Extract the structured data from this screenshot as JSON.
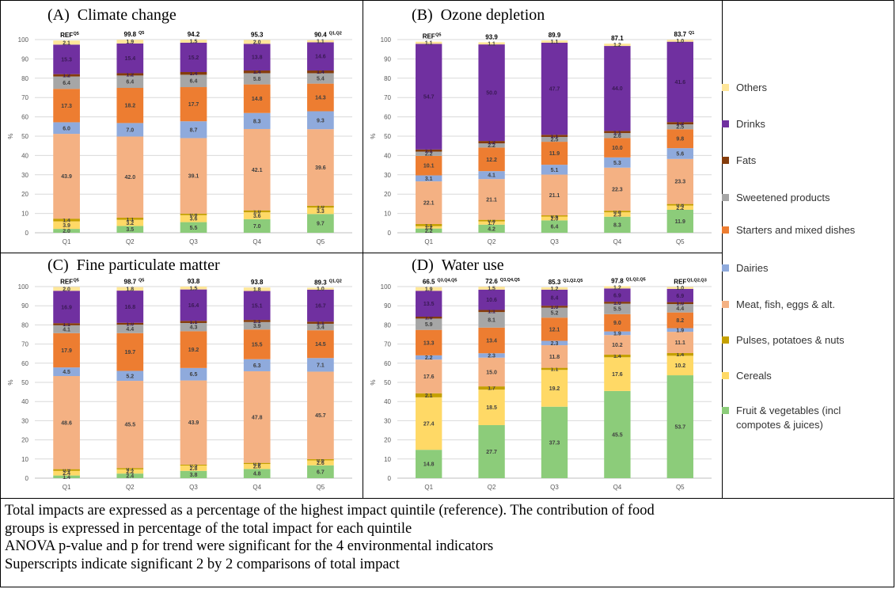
{
  "chart_data": [
    {
      "type": "bar",
      "panel": "(A)",
      "title": "Climate change",
      "ylabel": "%",
      "ylim": [
        0,
        100
      ],
      "categories": [
        "Q1",
        "Q2",
        "Q3",
        "Q4",
        "Q5"
      ],
      "totals": [
        "REF",
        "99.8",
        "94.2",
        "95.3",
        "90.4"
      ],
      "superscripts": [
        "Q5",
        "Q5",
        "",
        "",
        "Q1,Q2"
      ],
      "series": [
        {
          "name": "Fruit & vegetables (incl compotes & juices)",
          "color": "#8ccc7a",
          "values": [
            2.0,
            3.5,
            5.5,
            7.0,
            9.7
          ]
        },
        {
          "name": "Cereals",
          "color": "#ffd966",
          "values": [
            3.9,
            3.2,
            3.6,
            3.6,
            3.3
          ]
        },
        {
          "name": "Pulses, potatoes & nuts",
          "color": "#c5a000",
          "values": [
            1.4,
            1.1,
            0.8,
            1.0,
            1.0
          ]
        },
        {
          "name": "Meat, fish, eggs & alt.",
          "color": "#f4b183",
          "values": [
            43.9,
            42.0,
            39.1,
            42.1,
            39.6
          ]
        },
        {
          "name": "Dairies",
          "color": "#8faadc",
          "values": [
            6.0,
            7.0,
            8.7,
            8.3,
            9.3
          ]
        },
        {
          "name": "Starters and mixed dishes",
          "color": "#ed7d31",
          "values": [
            17.3,
            18.2,
            17.7,
            14.8,
            14.3
          ]
        },
        {
          "name": "Sweetened products",
          "color": "#a6a6a6",
          "values": [
            6.4,
            6.4,
            6.4,
            5.8,
            5.4
          ]
        },
        {
          "name": "Fats",
          "color": "#843c0c",
          "values": [
            1.2,
            1.2,
            1.4,
            1.4,
            1.4
          ]
        },
        {
          "name": "Drinks",
          "color": "#7030a0",
          "values": [
            15.3,
            15.4,
            15.2,
            13.8,
            14.6
          ]
        },
        {
          "name": "Others",
          "color": "#ffe699",
          "values": [
            2.1,
            1.9,
            1.5,
            2.0,
            1.1
          ]
        }
      ]
    },
    {
      "type": "bar",
      "panel": "(B)",
      "title": "Ozone depletion",
      "ylabel": "%",
      "ylim": [
        0,
        100
      ],
      "categories": [
        "Q1",
        "Q2",
        "Q3",
        "Q4",
        "Q5"
      ],
      "totals": [
        "REF",
        "93.9",
        "89.9",
        "87.1",
        "83.7"
      ],
      "superscripts": [
        "Q5",
        "",
        "",
        "",
        "Q1"
      ],
      "series": [
        {
          "name": "Fruit & vegetables (incl compotes & juices)",
          "color": "#8ccc7a",
          "values": [
            2.2,
            4.2,
            6.4,
            8.3,
            11.9
          ]
        },
        {
          "name": "Cereals",
          "color": "#ffd966",
          "values": [
            1.2,
            1.7,
            2.0,
            2.3,
            2.2
          ]
        },
        {
          "name": "Pulses, potatoes & nuts",
          "color": "#c5a000",
          "values": [
            1.1,
            0.8,
            0.6,
            0.8,
            0.8
          ]
        },
        {
          "name": "Meat, fish, eggs & alt.",
          "color": "#f4b183",
          "values": [
            22.1,
            21.1,
            21.1,
            22.3,
            23.3
          ]
        },
        {
          "name": "Dairies",
          "color": "#8faadc",
          "values": [
            3.1,
            4.1,
            5.1,
            5.3,
            5.6
          ]
        },
        {
          "name": "Starters and mixed dishes",
          "color": "#ed7d31",
          "values": [
            10.1,
            12.2,
            11.9,
            10.0,
            9.8
          ]
        },
        {
          "name": "Sweetened products",
          "color": "#a6a6a6",
          "values": [
            2.2,
            2.2,
            2.5,
            2.6,
            2.5
          ]
        },
        {
          "name": "Fats",
          "color": "#843c0c",
          "values": [
            1.1,
            1.2,
            1.1,
            1.1,
            1.2
          ]
        },
        {
          "name": "Drinks",
          "color": "#7030a0",
          "values": [
            54.7,
            50.0,
            47.7,
            44.0,
            41.6
          ]
        },
        {
          "name": "Others",
          "color": "#ffe699",
          "values": [
            1.1,
            1.1,
            1.1,
            1.2,
            1.0
          ]
        }
      ]
    },
    {
      "type": "bar",
      "panel": "(C)",
      "title": "Fine particulate matter",
      "ylabel": "%",
      "ylim": [
        0,
        100
      ],
      "categories": [
        "Q1",
        "Q2",
        "Q3",
        "Q4",
        "Q5"
      ],
      "totals": [
        "REF",
        "98.7",
        "93.8",
        "93.8",
        "89.3"
      ],
      "superscripts": [
        "Q5",
        "Q5",
        "",
        "",
        "Q1,Q2"
      ],
      "series": [
        {
          "name": "Fruit & vegetables (incl compotes & juices)",
          "color": "#8ccc7a",
          "values": [
            1.4,
            2.4,
            3.8,
            4.8,
            6.7
          ]
        },
        {
          "name": "Cereals",
          "color": "#ffd966",
          "values": [
            2.4,
            2.2,
            2.8,
            2.6,
            2.6
          ]
        },
        {
          "name": "Pulses, potatoes & nuts",
          "color": "#c5a000",
          "values": [
            0.9,
            0.7,
            0.5,
            0.6,
            0.6
          ]
        },
        {
          "name": "Meat, fish, eggs & alt.",
          "color": "#f4b183",
          "values": [
            48.6,
            45.5,
            43.9,
            47.8,
            45.7
          ]
        },
        {
          "name": "Dairies",
          "color": "#8faadc",
          "values": [
            4.5,
            5.2,
            6.5,
            6.3,
            7.1
          ]
        },
        {
          "name": "Starters and mixed dishes",
          "color": "#ed7d31",
          "values": [
            17.9,
            19.7,
            19.2,
            15.5,
            14.5
          ]
        },
        {
          "name": "Sweetened products",
          "color": "#a6a6a6",
          "values": [
            4.1,
            4.4,
            4.3,
            3.9,
            3.4
          ]
        },
        {
          "name": "Fats",
          "color": "#843c0c",
          "values": [
            1.1,
            1.0,
            1.1,
            1.1,
            1.1
          ]
        },
        {
          "name": "Drinks",
          "color": "#7030a0",
          "values": [
            16.9,
            16.8,
            16.4,
            15.1,
            16.7
          ]
        },
        {
          "name": "Others",
          "color": "#ffe699",
          "values": [
            2.0,
            1.8,
            1.5,
            1.8,
            1.0
          ]
        }
      ]
    },
    {
      "type": "bar",
      "panel": "(D)",
      "title": "Water use",
      "ylabel": "%",
      "ylim": [
        0,
        100
      ],
      "categories": [
        "Q1",
        "Q2",
        "Q3",
        "Q4",
        "Q5"
      ],
      "totals": [
        "66.5",
        "72.6",
        "85.3",
        "97.8",
        "REF"
      ],
      "superscripts": [
        "Q3,Q4,Q5",
        "Q3,Q4,Q5",
        "Q1,Q2,Q5",
        "Q1,Q2,Q5",
        "Q1,Q2,Q3"
      ],
      "series": [
        {
          "name": "Fruit & vegetables (incl compotes & juices)",
          "color": "#8ccc7a",
          "values": [
            14.8,
            27.7,
            37.3,
            45.5,
            53.7
          ]
        },
        {
          "name": "Cereals",
          "color": "#ffd966",
          "values": [
            27.4,
            18.5,
            19.2,
            17.6,
            10.2
          ]
        },
        {
          "name": "Pulses, potatoes & nuts",
          "color": "#c5a000",
          "values": [
            2.1,
            1.7,
            1.1,
            1.4,
            1.4
          ]
        },
        {
          "name": "Meat, fish, eggs & alt.",
          "color": "#f4b183",
          "values": [
            17.6,
            15.0,
            11.8,
            10.2,
            11.1
          ]
        },
        {
          "name": "Dairies",
          "color": "#8faadc",
          "values": [
            2.2,
            2.3,
            2.3,
            1.9,
            1.9
          ]
        },
        {
          "name": "Starters and mixed dishes",
          "color": "#ed7d31",
          "values": [
            13.3,
            13.4,
            12.1,
            9.0,
            8.2
          ]
        },
        {
          "name": "Sweetened products",
          "color": "#a6a6a6",
          "values": [
            5.9,
            8.1,
            5.2,
            5.5,
            4.4
          ]
        },
        {
          "name": "Fats",
          "color": "#843c0c",
          "values": [
            1.0,
            1.1,
            1.0,
            1.0,
            1.0
          ]
        },
        {
          "name": "Drinks",
          "color": "#7030a0",
          "values": [
            13.5,
            10.6,
            8.4,
            6.9,
            6.9
          ]
        },
        {
          "name": "Others",
          "color": "#ffe699",
          "values": [
            1.9,
            1.5,
            1.2,
            1.2,
            1.0
          ]
        }
      ]
    }
  ],
  "panels": {
    "a_label": "(A)",
    "a_title": "Climate change",
    "b_label": "(B)",
    "b_title": "Ozone depletion",
    "c_label": "(C)",
    "c_title": "Fine particulate matter",
    "d_label": "(D)",
    "d_title": "Water use"
  },
  "legend": [
    {
      "label": "Others",
      "color": "#ffe699"
    },
    {
      "label": "Drinks",
      "color": "#7030a0"
    },
    {
      "label": "Fats",
      "color": "#843c0c"
    },
    {
      "label": "Sweetened products",
      "color": "#a6a6a6"
    },
    {
      "label": "Starters and mixed dishes",
      "color": "#ed7d31"
    },
    {
      "label": "Dairies",
      "color": "#8faadc"
    },
    {
      "label": "Meat, fish, eggs & alt.",
      "color": "#f4b183"
    },
    {
      "label": "Pulses, potatoes & nuts",
      "color": "#c5a000"
    },
    {
      "label": "Cereals",
      "color": "#ffd966"
    },
    {
      "label": "Fruit & vegetables (incl compotes & juices)",
      "color": "#8ccc7a"
    }
  ],
  "caption": {
    "line1": "Total impacts are expressed as a percentage of the highest impact quintile (reference). The contribution of food",
    "line2": "groups is expressed in percentage of the total impact for each quintile",
    "line3": "ANOVA p-value and p for trend were significant for the 4 environmental indicators",
    "line4": "Superscripts indicate significant 2 by 2 comparisons of total impact"
  }
}
